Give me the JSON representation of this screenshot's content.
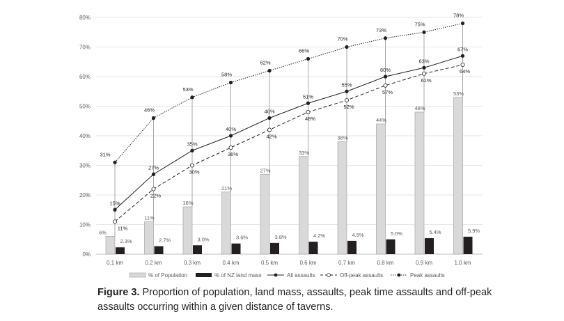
{
  "chart_data": {
    "type": "bar",
    "title": "",
    "xlabel": "",
    "ylabel": "",
    "ylim": [
      0,
      80
    ],
    "yticks": [
      "0%",
      "10%",
      "20%",
      "30%",
      "40%",
      "50%",
      "60%",
      "70%",
      "80%"
    ],
    "grid": true,
    "legend_position": "bottom",
    "categories": [
      "0.1 km",
      "0.2 km",
      "0.3 km",
      "0.4 km",
      "0.5 km",
      "0.6 km",
      "0.7 km",
      "0.8 km",
      "0.9 km",
      "1.0 km"
    ],
    "series": [
      {
        "name": "% of Population",
        "kind": "bar",
        "color": "#d9d9d9",
        "values": [
          6,
          11,
          16,
          21,
          27,
          33,
          38,
          44,
          48,
          53
        ],
        "labels": [
          "6%",
          "11%",
          "16%",
          "21%",
          "27%",
          "33%",
          "38%",
          "44%",
          "48%",
          "53%"
        ]
      },
      {
        "name": "% of NZ land mass",
        "kind": "bar",
        "color": "#231f20",
        "values": [
          2.3,
          2.7,
          3.0,
          3.6,
          3.8,
          4.2,
          4.5,
          5.0,
          5.4,
          5.9
        ],
        "labels": [
          "2.3%",
          "2.7%",
          "3.0%",
          "3.6%",
          "3.8%",
          "4.2%",
          "4.5%",
          "5.0%",
          "5.4%",
          "5.9%"
        ]
      },
      {
        "name": "All assaults",
        "kind": "line",
        "style": "solid",
        "marker": "filled",
        "values": [
          15,
          27,
          35,
          40,
          46,
          51,
          55,
          60,
          63,
          67
        ],
        "labels": [
          "15%",
          "27%",
          "35%",
          "40%",
          "46%",
          "51%",
          "55%",
          "60%",
          "63%",
          "67%"
        ]
      },
      {
        "name": "Off-peak assaults",
        "kind": "line",
        "style": "dashed",
        "marker": "open",
        "values": [
          11,
          22,
          30,
          36,
          42,
          48,
          52,
          57,
          61,
          64
        ],
        "labels": [
          "11%",
          "22%",
          "30%",
          "36%",
          "42%",
          "48%",
          "52%",
          "57%",
          "61%",
          "64%"
        ]
      },
      {
        "name": "Peak assaults",
        "kind": "line",
        "style": "dotted",
        "marker": "filled",
        "values": [
          31,
          46,
          53,
          58,
          62,
          66,
          70,
          73,
          75,
          78
        ],
        "labels": [
          "31%",
          "46%",
          "53%",
          "58%",
          "62%",
          "66%",
          "70%",
          "73%",
          "75%",
          "78%"
        ]
      }
    ]
  },
  "caption": {
    "label": "Figure 3.",
    "text": "Proportion of population, land mass, assaults, peak time assaults and off-peak assaults occurring within a given distance of taverns."
  }
}
